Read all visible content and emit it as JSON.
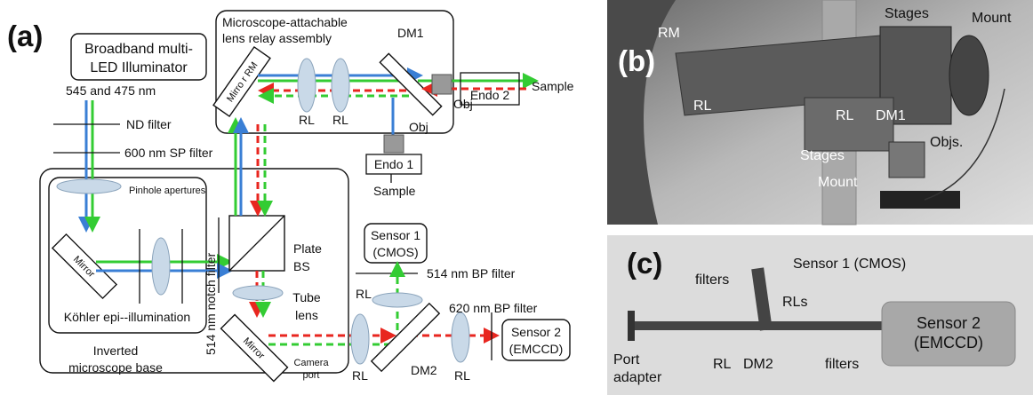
{
  "panel_a": {
    "label": "(a)",
    "illuminator": [
      "Broadband multi-",
      "LED Illuminator"
    ],
    "wavelengths": "545 and 475 nm",
    "nd_filter": "ND filter",
    "sp_filter": "600 nm SP filter",
    "pinholes": "Pinhole apertures",
    "mirror_1": "Mirror",
    "kohler": "Köhler epi--illumination",
    "base": [
      "Inverted",
      "microscope base"
    ],
    "notch_filter": "514 nm notch filter",
    "plate_bs": [
      "Plate",
      "BS"
    ],
    "tube_lens": [
      "Tube",
      "lens"
    ],
    "mirror_2": "Mirror",
    "camera_port": [
      "Camera",
      "port"
    ],
    "relay_assembly": [
      "Microscope-attachable",
      "lens relay assembly"
    ],
    "mirror_rm": "Mirro r RM",
    "relay_lenses": [
      "RL",
      "RL"
    ],
    "dm1": "DM1",
    "obj_1": "Obj",
    "obj_2": "Obj",
    "endo_2": "Endo 2",
    "endo_1": "Endo 1",
    "sample_1": "Sample",
    "sample_2": "Sample",
    "sensor_1": [
      "Sensor 1",
      "(CMOS)"
    ],
    "bp_514": "514 nm BP filter",
    "rl_sensor1": "RL",
    "bp_620": "620 nm BP filter",
    "sensor_2": [
      "Sensor 2",
      "(EMCCD)"
    ],
    "dm2": "DM2",
    "bottom_rls": [
      "RL",
      "RL"
    ]
  },
  "panel_b": {
    "label": "(b)",
    "rm": "RM",
    "rl_1": "RL",
    "stages_1": "Stages",
    "mount_1": "Mount",
    "rl_2": "RL",
    "dm1": "DM1",
    "stages_2": "Stages",
    "objs": "Objs.",
    "mount_2": "Mount"
  },
  "panel_c": {
    "label": "(c)",
    "sensor_1": "Sensor 1 (CMOS)",
    "filters_1": "filters",
    "rls": "RLs",
    "port_adapter": [
      "Port",
      "adapter"
    ],
    "rl": "RL",
    "dm2": "DM2",
    "filters_2": "filters",
    "sensor_2": [
      "Sensor 2",
      "(EMCCD)"
    ]
  }
}
